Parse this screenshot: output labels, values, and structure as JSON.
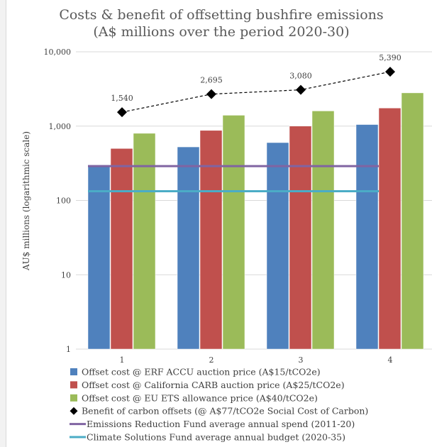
{
  "chart_data": {
    "type": "bar",
    "title_lines": [
      "Costs & benefit of offsetting bushfire emissions",
      "(A$ millions over the period 2020-30)"
    ],
    "ylabel": "AU$ millions (logarithmic scale)",
    "xlabel": "",
    "y_scale": "log",
    "ylim": [
      1,
      10000
    ],
    "y_ticks": [
      1,
      10,
      100,
      1000,
      10000
    ],
    "y_tick_labels": [
      "1",
      "10",
      "100",
      "1,000",
      "10,000"
    ],
    "categories": [
      "1",
      "2",
      "3",
      "4"
    ],
    "gridlines": true,
    "legend_position": "bottom",
    "series": [
      {
        "name": "Offset cost @ ERF ACCU auction price (A$15/tCO2e)",
        "kind": "bar",
        "color": "#4f81bd",
        "values": [
          300,
          525,
          600,
          1050
        ]
      },
      {
        "name": "Offset cost @ California CARB auction price (A$25/tCO2e)",
        "kind": "bar",
        "color": "#c0504d",
        "values": [
          500,
          875,
          1000,
          1750
        ]
      },
      {
        "name": "Offset cost @ EU ETS allowance price (A$40/tCO2e)",
        "kind": "bar",
        "color": "#9bbb59",
        "values": [
          800,
          1400,
          1600,
          2800
        ]
      },
      {
        "name": "Benefit of carbon offsets (@ A$77/tCO2e Social Cost of Carbon)",
        "kind": "line-marker",
        "color": "#000000",
        "values": [
          1540,
          2695,
          3080,
          5390
        ],
        "data_labels": [
          "1,540",
          "2,695",
          "3,080",
          "5,390"
        ]
      },
      {
        "name": "Emissions Reduction Fund average annual spend (2011-20)",
        "kind": "hline",
        "color": "#8064a2",
        "value": 290
      },
      {
        "name": "Climate Solutions Fund average annual budget (2020-35)",
        "kind": "hline",
        "color": "#4bacc6",
        "value": 133
      }
    ]
  }
}
